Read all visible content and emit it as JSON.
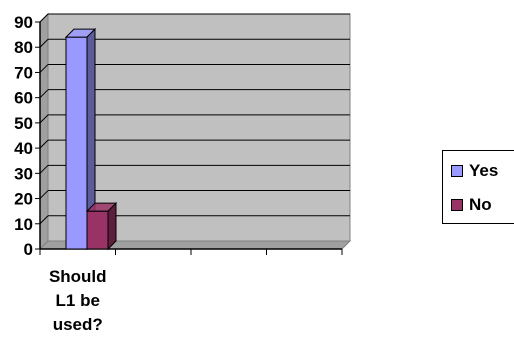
{
  "chart_data": {
    "type": "bar",
    "categories": [
      "Should\nL1 be\nused?"
    ],
    "series": [
      {
        "name": "Yes",
        "values": [
          84
        ],
        "color": "#9999ff"
      },
      {
        "name": "No",
        "values": [
          15
        ],
        "color": "#993366"
      }
    ],
    "ylim": [
      0,
      90
    ],
    "yticks": [
      0,
      10,
      20,
      30,
      40,
      50,
      60,
      70,
      80,
      90
    ],
    "grid": true,
    "legend_position": "right",
    "plot_background": "#c0c0c0",
    "three_d": true
  },
  "legend": {
    "yes_label": "Yes",
    "no_label": "No",
    "yes_color": "#9999ff",
    "no_color": "#993366"
  }
}
